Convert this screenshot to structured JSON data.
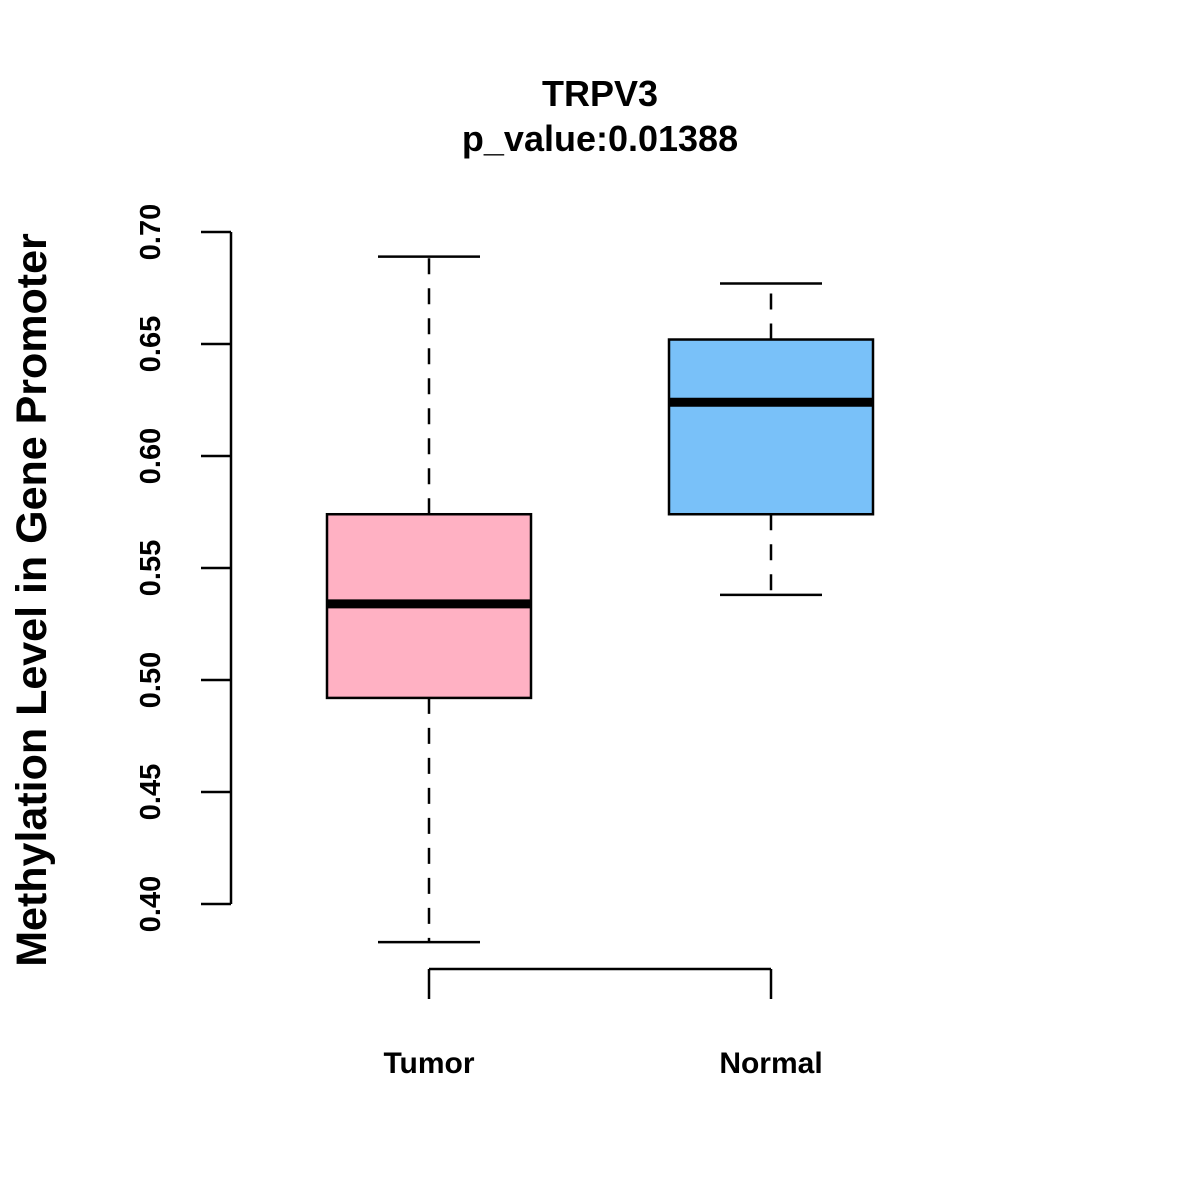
{
  "chart_data": {
    "type": "boxplot",
    "title": "TRPV3",
    "subtitle": "p_value:0.01388",
    "ylabel": "Methylation Level in Gene Promoter",
    "xlabel": "",
    "ylim": [
      0.4,
      0.7
    ],
    "yticks": [
      "0.40",
      "0.45",
      "0.50",
      "0.55",
      "0.60",
      "0.65",
      "0.70"
    ],
    "grid": false,
    "categories": [
      "Tumor",
      "Normal"
    ],
    "series": [
      {
        "label": "Tumor",
        "color": "#FFB1C3",
        "min": 0.383,
        "q1": 0.492,
        "median": 0.534,
        "q3": 0.574,
        "max": 0.689
      },
      {
        "label": "Normal",
        "color": "#79C1F9",
        "min": 0.538,
        "q1": 0.574,
        "median": 0.624,
        "q3": 0.652,
        "max": 0.677
      }
    ]
  }
}
